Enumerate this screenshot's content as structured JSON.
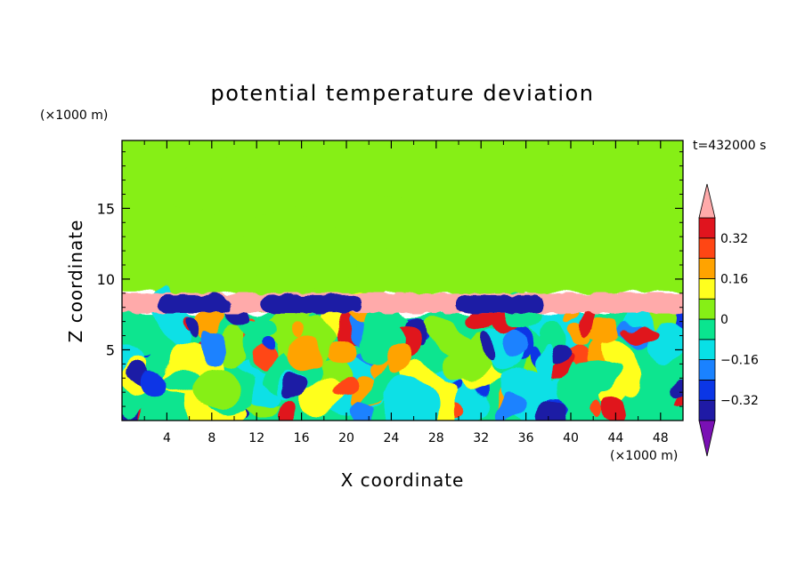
{
  "chart_data": {
    "type": "heatmap",
    "title": "potential temperature deviation",
    "xlabel": "X coordinate",
    "ylabel": "Z coordinate",
    "x_unit": "(×1000 m)",
    "y_unit": "(×1000 m)",
    "time_label": "t=432000 s",
    "xlim": [
      0,
      50
    ],
    "ylim": [
      0,
      19.8
    ],
    "x_ticks": [
      4,
      8,
      12,
      16,
      20,
      24,
      28,
      32,
      36,
      40,
      44,
      48
    ],
    "y_ticks": [
      5,
      10,
      15
    ],
    "colorbar": {
      "levels": [
        -0.4,
        -0.32,
        -0.24,
        -0.16,
        -0.08,
        0,
        0.08,
        0.16,
        0.24,
        0.32,
        0.4
      ],
      "tick_values": [
        0.32,
        0.16,
        0,
        -0.16,
        -0.32
      ],
      "tick_labels": [
        "0.32",
        "0.16",
        "0",
        "−0.16",
        "−0.32"
      ],
      "colors": [
        "#7a10b4",
        "#1f1aa5",
        "#0b36e6",
        "#1a82ff",
        "#08e0e6",
        "#0ae58f",
        "#86ef16",
        "#ffff1e",
        "#ffa300",
        "#ff4614",
        "#e0141e",
        "#ffaaaa"
      ]
    },
    "upper_region": {
      "z_range": [
        9,
        19.8
      ],
      "value_range": [
        0,
        0.08
      ]
    },
    "inversion_layer": {
      "z_range": [
        7.6,
        9
      ],
      "value_above": 0.4
    },
    "lower_region": {
      "z_range": [
        0,
        7.6
      ],
      "value_range": [
        -0.4,
        0.4
      ]
    }
  }
}
